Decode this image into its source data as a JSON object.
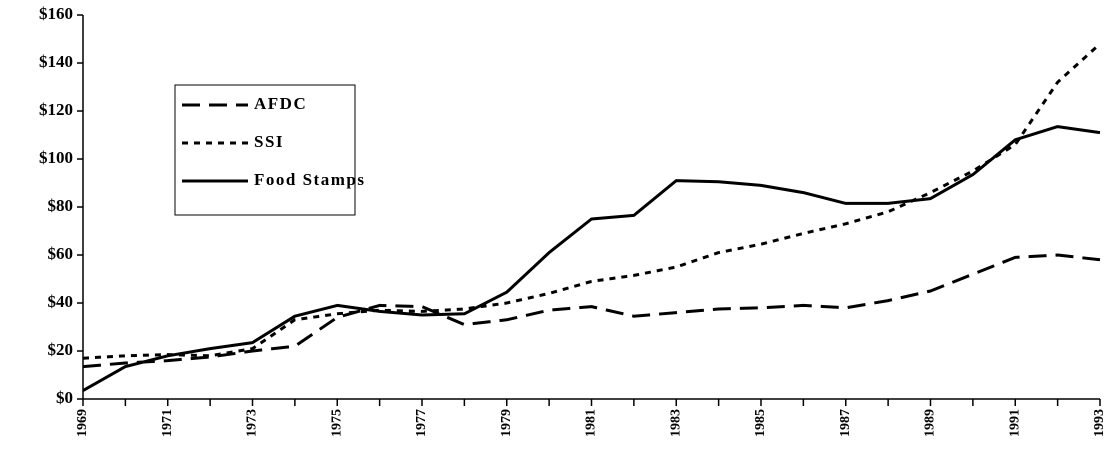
{
  "chart_data": {
    "type": "line",
    "categories": [
      "1969",
      null,
      "1971",
      null,
      "1973",
      null,
      "1975",
      null,
      "1977",
      null,
      "1979",
      null,
      "1981",
      null,
      "1983",
      null,
      "1985",
      null,
      "1987",
      null,
      "1989",
      null,
      "1991",
      null,
      "1993"
    ],
    "series": [
      {
        "name": "AFDC",
        "color": "#000000",
        "values": [
          13.5,
          15,
          16,
          17.5,
          20,
          22,
          34,
          39,
          38.5,
          31,
          33,
          37,
          38.5,
          34.5,
          36,
          37.5,
          38,
          39,
          38,
          41,
          45,
          52,
          59,
          60,
          58
        ]
      },
      {
        "name": "SSI",
        "color": "#000000",
        "values": [
          17,
          18,
          18.5,
          18,
          21,
          33,
          35.5,
          37,
          36.5,
          37.5,
          40,
          44,
          49,
          51.5,
          55,
          61,
          64.5,
          69,
          73,
          78,
          86,
          95,
          106,
          132,
          148
        ]
      },
      {
        "name": "Food Stamps",
        "color": "#000000",
        "values": [
          3.5,
          13.5,
          18,
          21,
          23.5,
          34.5,
          39,
          36.5,
          35,
          35.5,
          44.5,
          61,
          75,
          76.5,
          91,
          90.5,
          89,
          86,
          81.5,
          81.5,
          83.5,
          93.5,
          108,
          113.5,
          111
        ]
      }
    ],
    "ylim": [
      0,
      160
    ],
    "yticks": [
      {
        "value": 0,
        "label": "$0"
      },
      {
        "value": 20,
        "label": "$20"
      },
      {
        "value": 40,
        "label": "$40"
      },
      {
        "value": 60,
        "label": "$60"
      },
      {
        "value": 80,
        "label": "$80"
      },
      {
        "value": 100,
        "label": "$100"
      },
      {
        "value": 120,
        "label": "$120"
      },
      {
        "value": 140,
        "label": "$140"
      },
      {
        "value": 160,
        "label": "$160"
      }
    ]
  }
}
